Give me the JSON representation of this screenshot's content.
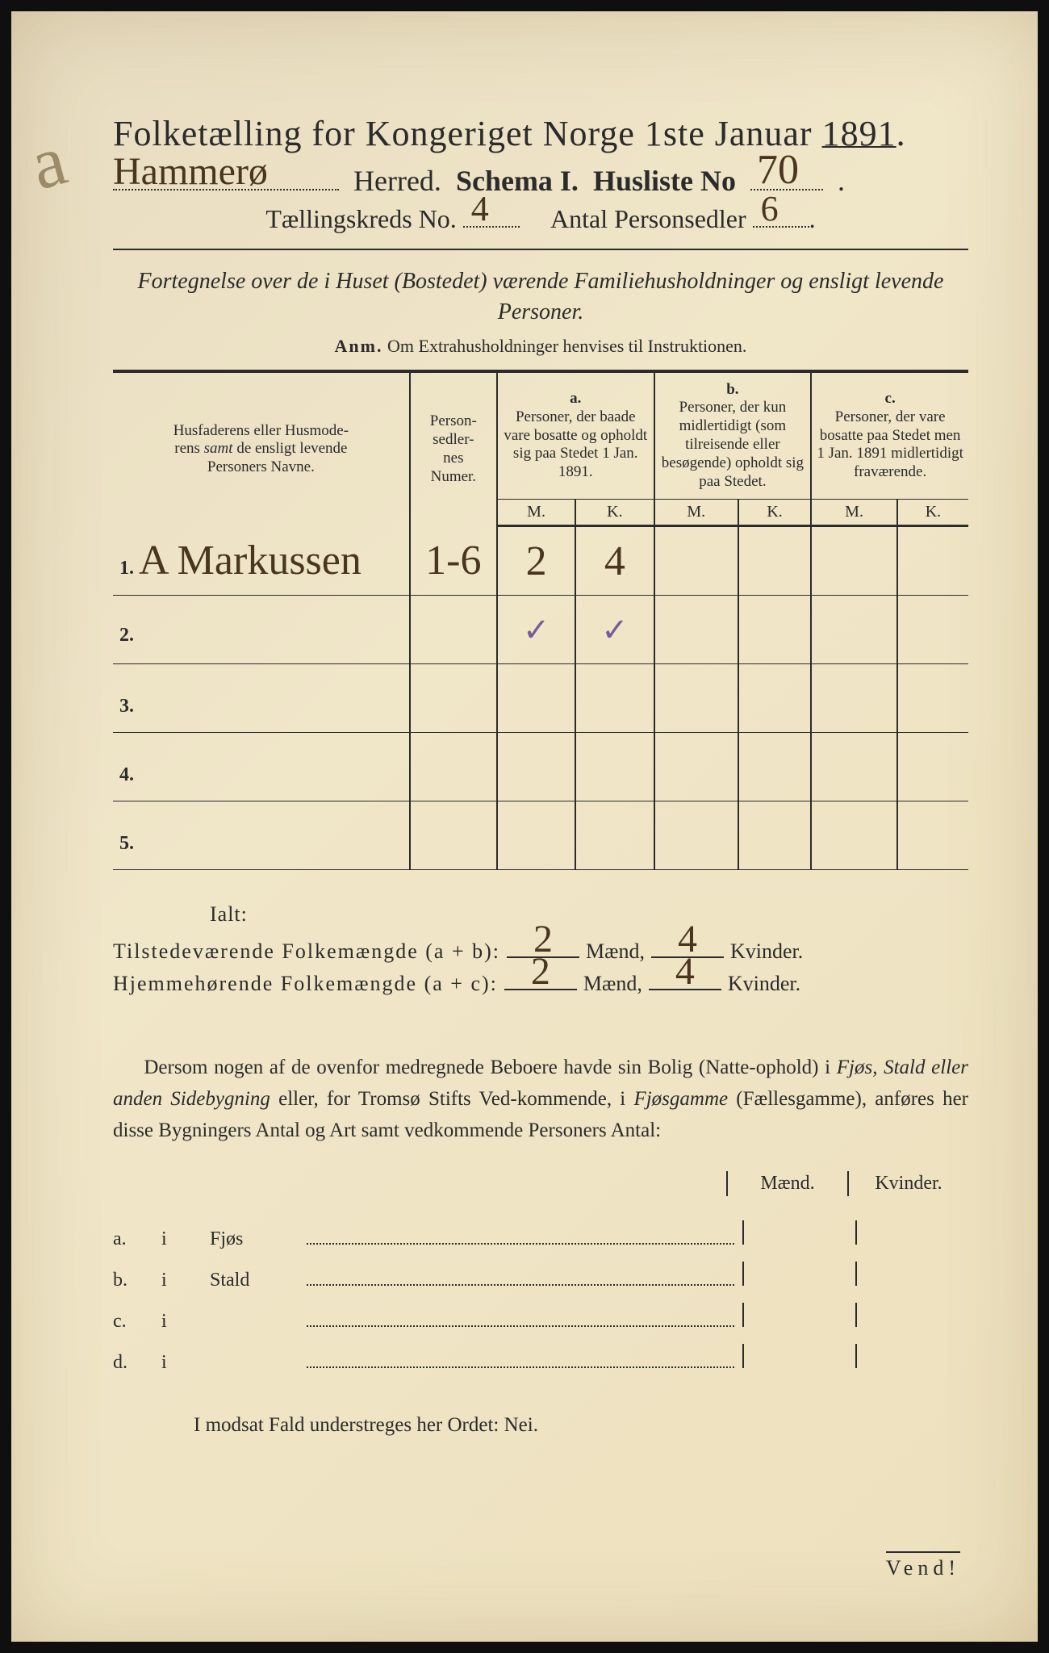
{
  "colors": {
    "paper": "#ede0bd",
    "ink": "#2b2b2b",
    "handwriting": "#4a3620",
    "purple_ink": "#7a5a9a",
    "frame": "#0f0f0f"
  },
  "typography": {
    "title_fontsize_pt": 33,
    "body_fontsize_pt": 19,
    "handwriting_fontsize_pt": 36,
    "font_family_print": "Times New Roman serif",
    "font_family_hand": "cursive"
  },
  "margin_mark": "a",
  "title": "Folketælling for Kongeriget Norge 1ste Januar 1891.",
  "herred_line": {
    "herred_value_hand": "Hammerø",
    "herred_label": "Herred.",
    "schema_label": "Schema I.",
    "husliste_label": "Husliste No",
    "husliste_value_hand": "70"
  },
  "subline": {
    "kreds_label": "Tællingskreds No.",
    "kreds_value_hand": "4",
    "antal_label": "Antal Personsedler",
    "antal_value_hand": "6"
  },
  "fortegnelse": "Fortegnelse over de i Huset (Bostedet) værende Familiehusholdninger og ensligt levende Personer.",
  "anm_label": "Anm.",
  "anm_text": "Om Extrahusholdninger henvises til Instruktionen.",
  "table": {
    "col1_header": "Husfaderens eller Husmoderens samt de ensligt levende Personers Navne.",
    "col1_samt_italic": "samt",
    "col2_header": "Person-sedler-nes Numer.",
    "col_a_label": "a.",
    "col_a_text": "Personer, der baade vare bosatte og opholdt sig paa Stedet 1 Jan. 1891.",
    "col_b_label": "b.",
    "col_b_text": "Personer, der kun midlertidigt (som tilreisende eller besøgende) opholdt sig paa Stedet.",
    "col_c_label": "c.",
    "col_c_text": "Personer, der vare bosatte paa Stedet men 1 Jan. 1891 midlertidigt fraværende.",
    "mk_m": "M.",
    "mk_k": "K.",
    "rows": [
      {
        "num": "1.",
        "name_hand": "A Markussen",
        "person_numer": "1-6",
        "a_m": "2",
        "a_k": "4",
        "b_m": "",
        "b_k": "",
        "c_m": "",
        "c_k": ""
      },
      {
        "num": "2.",
        "name_hand": "",
        "person_numer": "",
        "a_m": "✓",
        "a_k": "✓",
        "b_m": "",
        "b_k": "",
        "c_m": "",
        "c_k": "",
        "purple": true
      },
      {
        "num": "3.",
        "name_hand": "",
        "person_numer": "",
        "a_m": "",
        "a_k": "",
        "b_m": "",
        "b_k": "",
        "c_m": "",
        "c_k": ""
      },
      {
        "num": "4.",
        "name_hand": "",
        "person_numer": "",
        "a_m": "",
        "a_k": "",
        "b_m": "",
        "b_k": "",
        "c_m": "",
        "c_k": ""
      },
      {
        "num": "5.",
        "name_hand": "",
        "person_numer": "",
        "a_m": "",
        "a_k": "",
        "b_m": "",
        "b_k": "",
        "c_m": "",
        "c_k": ""
      }
    ]
  },
  "ialt": {
    "title": "Ialt:",
    "line1_label": "Tilstedeværende Folkemængde (a + b):",
    "line2_label": "Hjemmehørende Folkemængde (a + c):",
    "maend_label": "Mænd,",
    "kvinder_label": "Kvinder.",
    "line1_m": "2",
    "line1_k": "4",
    "line2_m": "2",
    "line2_k": "4"
  },
  "dersom_text": "Dersom nogen af de ovenfor medregnede Beboere havde sin Bolig (Natteophold) i Fjøs, Stald eller anden Sidebygning eller, for Tromsø Stifts Vedkommende, i Fjøsgamme (Fællesgamme), anføres her disse Bygningers Antal og Art samt vedkommende Personers Antal:",
  "dersom_italic1": "Fjøs, Stald eller anden Sidebygning",
  "dersom_italic2": "Fjøsgamme",
  "abcd": {
    "maend_head": "Mænd.",
    "kvinder_head": "Kvinder.",
    "rows": [
      {
        "key": "a.",
        "i": "i",
        "label": "Fjøs"
      },
      {
        "key": "b.",
        "i": "i",
        "label": "Stald"
      },
      {
        "key": "c.",
        "i": "i",
        "label": ""
      },
      {
        "key": "d.",
        "i": "i",
        "label": ""
      }
    ]
  },
  "modsat": "I modsat Fald understreges her Ordet: Nei.",
  "vend": "Vend!"
}
